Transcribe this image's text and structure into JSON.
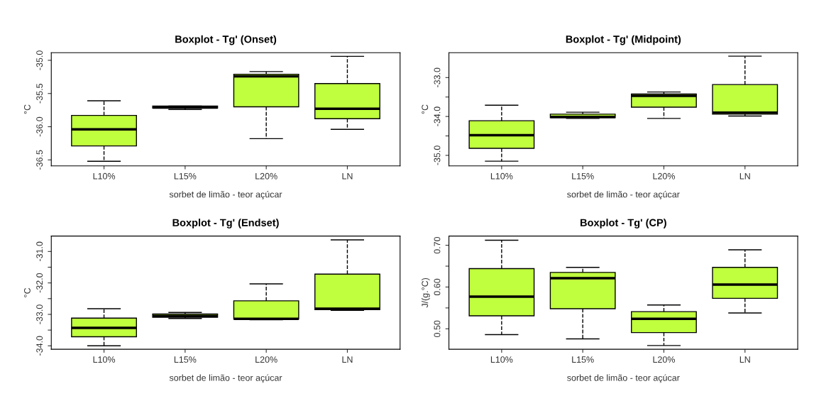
{
  "chart_data": [
    {
      "type": "box",
      "title": "Boxplot - Tg' (Onset)",
      "xlabel": "sorbet de limão - teor açúcar",
      "ylabel": "°C",
      "categories": [
        "L10%",
        "L15%",
        "L20%",
        "LN"
      ],
      "color": "#c0ff3e",
      "grid": false,
      "line_style": "dashed",
      "ylim": [
        -36.59,
        -34.885
      ],
      "yticks": [
        {
          "value": -35.0,
          "label": "-35.0"
        },
        -35.5,
        {
          "value": -36.0,
          "label": "-36.0"
        },
        -36.5
      ],
      "boxes": [
        {
          "low": -36.52,
          "q1": -36.29,
          "median": -36.04,
          "q3": -35.83,
          "high": -35.61
        },
        {
          "low": -35.74,
          "q1": -35.72,
          "median": -35.71,
          "q3": -35.69,
          "high": -35.69
        },
        {
          "low": -36.18,
          "q1": -35.7,
          "median": -35.24,
          "q3": -35.21,
          "high": -35.17
        },
        {
          "low": -36.04,
          "q1": -35.88,
          "median": -35.73,
          "q3": -35.35,
          "high": -34.94
        }
      ]
    },
    {
      "type": "box",
      "title": "Boxplot - Tg' (Midpoint)",
      "xlabel": "sorbet de limão - teor açúcar",
      "ylabel": "°C",
      "categories": [
        "L10%",
        "L15%",
        "L20%",
        "LN"
      ],
      "color": "#c0ff3e",
      "grid": false,
      "line_style": "dashed",
      "ylim": [
        -35.27,
        -32.36
      ],
      "yticks": [
        {
          "value": -33.0,
          "label": "-33.0"
        },
        {
          "value": -33.5,
          "label": null
        },
        {
          "value": -34.0,
          "label": "-34.0"
        },
        {
          "value": -34.5,
          "label": null
        },
        {
          "value": -35.0,
          "label": "-35.0"
        }
      ],
      "boxes": [
        {
          "low": -35.15,
          "q1": -34.82,
          "median": -34.48,
          "q3": -34.11,
          "high": -33.71
        },
        {
          "low": -34.05,
          "q1": -34.03,
          "median": -34.01,
          "q3": -33.94,
          "high": -33.89
        },
        {
          "low": -34.05,
          "q1": -33.76,
          "median": -33.47,
          "q3": -33.42,
          "high": -33.37
        },
        {
          "low": -33.99,
          "q1": -33.94,
          "median": -33.9,
          "q3": -33.18,
          "high": -32.45
        }
      ]
    },
    {
      "type": "box",
      "title": "Boxplot - Tg' (Endset)",
      "xlabel": "sorbet de limão - teor açúcar",
      "ylabel": "°C",
      "categories": [
        "L10%",
        "L15%",
        "L20%",
        "LN"
      ],
      "color": "#c0ff3e",
      "grid": false,
      "line_style": "dashed",
      "ylim": [
        -34.11,
        -30.51
      ],
      "yticks": [
        {
          "value": -31.0,
          "label": "-31.0"
        },
        {
          "value": -31.5,
          "label": null
        },
        {
          "value": -32.0,
          "label": "-32.0"
        },
        {
          "value": -32.5,
          "label": null
        },
        {
          "value": -33.0,
          "label": "-33.0"
        },
        {
          "value": -33.5,
          "label": null
        },
        {
          "value": -34.0,
          "label": "-34.0"
        }
      ],
      "boxes": [
        {
          "low": -34.0,
          "q1": -33.71,
          "median": -33.43,
          "q3": -33.12,
          "high": -32.82
        },
        {
          "low": -33.13,
          "q1": -33.09,
          "median": -33.05,
          "q3": -32.99,
          "high": -32.94
        },
        {
          "low": -33.17,
          "q1": -33.15,
          "median": -33.14,
          "q3": -32.57,
          "high": -32.03
        },
        {
          "low": -32.87,
          "q1": -32.85,
          "median": -32.82,
          "q3": -31.72,
          "high": -30.63
        }
      ]
    },
    {
      "type": "box",
      "title": "Boxplot - Tg' (CP)",
      "xlabel": "sorbet de limão - teor açúcar",
      "ylabel": "J/(g.°C)",
      "categories": [
        "L10%",
        "L15%",
        "L20%",
        "LN"
      ],
      "color": "#c0ff3e",
      "grid": false,
      "line_style": "dashed",
      "ylim": [
        0.451,
        0.722
      ],
      "yticks": [
        {
          "value": 0.7,
          "label": "0.70"
        },
        {
          "value": 0.65,
          "label": null
        },
        {
          "value": 0.6,
          "label": "0.60"
        },
        {
          "value": 0.55,
          "label": null
        },
        {
          "value": 0.5,
          "label": "0.50"
        }
      ],
      "boxes": [
        {
          "low": 0.486,
          "q1": 0.531,
          "median": 0.577,
          "q3": 0.644,
          "high": 0.712
        },
        {
          "low": 0.476,
          "q1": 0.548,
          "median": 0.621,
          "q3": 0.635,
          "high": 0.647
        },
        {
          "low": 0.46,
          "q1": 0.491,
          "median": 0.524,
          "q3": 0.541,
          "high": 0.557
        },
        {
          "low": 0.538,
          "q1": 0.573,
          "median": 0.606,
          "q3": 0.647,
          "high": 0.689
        }
      ]
    }
  ]
}
